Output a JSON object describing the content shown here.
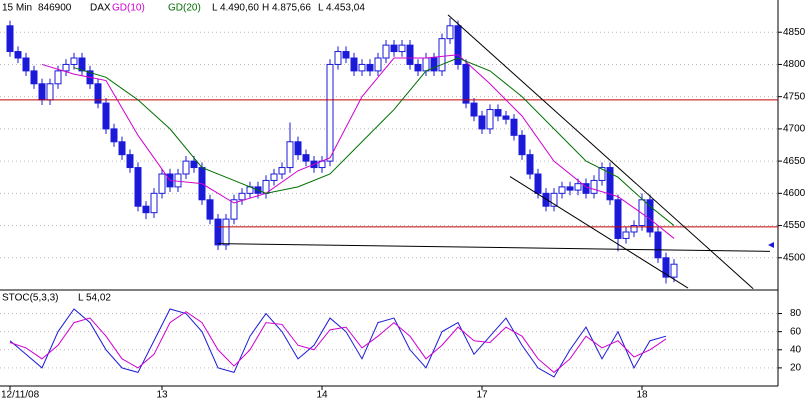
{
  "chart_data": [
    {
      "type": "candlestick",
      "title": "15 Min",
      "code": "846900",
      "symbol": "DAX",
      "stats": [
        "L 4.490,60",
        "H 4.875,66",
        "L 4.453,04"
      ],
      "categories": [
        "12/11/08",
        null,
        null,
        null,
        null,
        null,
        null,
        null,
        null,
        null,
        null,
        null,
        null,
        null,
        null,
        null,
        null,
        null,
        null,
        "13",
        null,
        null,
        null,
        null,
        null,
        null,
        null,
        null,
        null,
        null,
        null,
        null,
        null,
        null,
        null,
        null,
        null,
        null,
        null,
        "14",
        null,
        null,
        null,
        null,
        null,
        null,
        null,
        null,
        null,
        null,
        null,
        null,
        null,
        null,
        null,
        null,
        null,
        null,
        null,
        "17",
        null,
        null,
        null,
        null,
        null,
        null,
        null,
        null,
        null,
        null,
        null,
        null,
        null,
        null,
        null,
        null,
        null,
        null,
        null,
        "18",
        null,
        null,
        null,
        null
      ],
      "open": [
        4860,
        4820,
        4810,
        4790,
        4770,
        4745,
        4770,
        4790,
        4800,
        4810,
        4790,
        4770,
        4740,
        4700,
        4680,
        4660,
        4640,
        4580,
        4570,
        4600,
        4630,
        4610,
        4630,
        4650,
        4640,
        4590,
        4560,
        4520,
        4560,
        4590,
        4600,
        4610,
        4600,
        4620,
        4630,
        4640,
        4680,
        4660,
        4650,
        4640,
        4650,
        4800,
        4820,
        4810,
        4790,
        4800,
        4790,
        4810,
        4830,
        4820,
        4830,
        4800,
        4790,
        4810,
        4790,
        4840,
        4860,
        4800,
        4740,
        4720,
        4700,
        4730,
        4720,
        4715,
        4690,
        4660,
        4630,
        4600,
        4580,
        4600,
        4610,
        4605,
        4615,
        4600,
        4620,
        4640,
        4590,
        4530,
        4540,
        4550,
        4590,
        4540,
        4500,
        4470
      ],
      "high": [
        4868,
        4828,
        4818,
        4798,
        4778,
        4778,
        4798,
        4808,
        4818,
        4818,
        4798,
        4778,
        4748,
        4708,
        4688,
        4668,
        4648,
        4588,
        4608,
        4638,
        4638,
        4638,
        4658,
        4658,
        4648,
        4598,
        4568,
        4568,
        4598,
        4608,
        4618,
        4618,
        4628,
        4638,
        4648,
        4710,
        4688,
        4668,
        4658,
        4658,
        4808,
        4828,
        4828,
        4818,
        4808,
        4808,
        4818,
        4838,
        4838,
        4838,
        4838,
        4808,
        4818,
        4818,
        4848,
        4872,
        4868,
        4808,
        4748,
        4728,
        4738,
        4738,
        4728,
        4723,
        4698,
        4668,
        4638,
        4608,
        4608,
        4618,
        4618,
        4623,
        4623,
        4628,
        4648,
        4648,
        4598,
        4548,
        4558,
        4600,
        4598,
        4548,
        4508,
        4498
      ],
      "low": [
        4812,
        4802,
        4782,
        4762,
        4737,
        4737,
        4762,
        4782,
        4792,
        4782,
        4762,
        4732,
        4692,
        4672,
        4652,
        4632,
        4572,
        4560,
        4562,
        4592,
        4602,
        4602,
        4622,
        4632,
        4582,
        4552,
        4512,
        4512,
        4552,
        4582,
        4592,
        4592,
        4592,
        4612,
        4622,
        4632,
        4652,
        4642,
        4632,
        4632,
        4642,
        4792,
        4802,
        4782,
        4782,
        4782,
        4782,
        4802,
        4812,
        4812,
        4792,
        4782,
        4782,
        4782,
        4782,
        4832,
        4792,
        4732,
        4712,
        4692,
        4692,
        4712,
        4707,
        4682,
        4652,
        4622,
        4592,
        4572,
        4572,
        4592,
        4597,
        4597,
        4592,
        4592,
        4612,
        4582,
        4510,
        4522,
        4532,
        4542,
        4532,
        4492,
        4460,
        4462
      ],
      "close": [
        4820,
        4810,
        4790,
        4770,
        4745,
        4770,
        4790,
        4800,
        4810,
        4790,
        4770,
        4740,
        4700,
        4680,
        4660,
        4640,
        4580,
        4570,
        4600,
        4630,
        4610,
        4630,
        4650,
        4640,
        4590,
        4560,
        4520,
        4560,
        4590,
        4600,
        4610,
        4600,
        4620,
        4630,
        4640,
        4680,
        4660,
        4650,
        4640,
        4650,
        4800,
        4820,
        4810,
        4790,
        4800,
        4790,
        4810,
        4830,
        4820,
        4830,
        4800,
        4790,
        4810,
        4790,
        4840,
        4860,
        4800,
        4740,
        4720,
        4700,
        4730,
        4720,
        4715,
        4690,
        4660,
        4630,
        4600,
        4580,
        4600,
        4610,
        4605,
        4615,
        4600,
        4620,
        4640,
        4590,
        4530,
        4540,
        4550,
        4590,
        4540,
        4500,
        4470,
        4490
      ],
      "up_color": "#ffffff",
      "down_color": "#1a1ad8",
      "edge_color": "#1a1ad8",
      "series": [
        {
          "name": "GD(10)",
          "color": "#d000d0",
          "x": [
            4,
            8,
            12,
            16,
            20,
            24,
            28,
            32,
            36,
            40,
            44,
            48,
            52,
            56,
            60,
            64,
            68,
            72,
            76,
            80,
            83
          ],
          "values": [
            4800,
            4785,
            4775,
            4690,
            4620,
            4615,
            4585,
            4600,
            4635,
            4655,
            4750,
            4810,
            4810,
            4815,
            4770,
            4720,
            4650,
            4610,
            4595,
            4560,
            4530
          ]
        },
        {
          "name": "GD(20)",
          "color": "#007000",
          "x": [
            8,
            12,
            16,
            20,
            24,
            28,
            32,
            36,
            40,
            44,
            48,
            52,
            56,
            60,
            64,
            68,
            72,
            76,
            80,
            83
          ],
          "values": [
            4795,
            4780,
            4745,
            4700,
            4640,
            4620,
            4600,
            4610,
            4630,
            4680,
            4730,
            4790,
            4810,
            4790,
            4750,
            4700,
            4650,
            4625,
            4580,
            4550
          ]
        }
      ],
      "hlines": [
        4745,
        4548
      ],
      "hline_color": "#c00000",
      "trendlines": [
        {
          "x": [
            26,
            95
          ],
          "y": [
            4522,
            4510
          ]
        },
        {
          "x": [
            54.75,
            92.9
          ],
          "y": [
            4877,
            4452
          ]
        },
        {
          "x": [
            62.5,
            84.75
          ],
          "y": [
            4626,
            4453
          ]
        }
      ],
      "ylim": [
        4450,
        4900
      ],
      "yticks": [
        4500,
        4550,
        4600,
        4650,
        4700,
        4750,
        4800,
        4850
      ],
      "grid": true
    },
    {
      "type": "line",
      "title": "STOC(5,3,3)",
      "stats": [
        "L 54,02"
      ],
      "series": [
        {
          "color": "#1a1ad8",
          "x": [
            0,
            2,
            4,
            6,
            8,
            10,
            12,
            14,
            16,
            18,
            20,
            22,
            24,
            26,
            28,
            30,
            32,
            34,
            36,
            38,
            40,
            42,
            44,
            46,
            48,
            50,
            52,
            54,
            56,
            58,
            60,
            62,
            64,
            66,
            68,
            70,
            72,
            74,
            76,
            78,
            80,
            82
          ],
          "values": [
            50,
            35,
            20,
            60,
            85,
            70,
            40,
            20,
            15,
            50,
            85,
            80,
            60,
            20,
            15,
            55,
            80,
            60,
            30,
            45,
            75,
            60,
            30,
            70,
            75,
            40,
            20,
            60,
            70,
            35,
            55,
            75,
            45,
            20,
            10,
            40,
            65,
            30,
            60,
            20,
            50,
            55
          ]
        },
        {
          "color": "#d000d0",
          "x": [
            0,
            2,
            4,
            6,
            8,
            10,
            12,
            14,
            16,
            18,
            20,
            22,
            24,
            26,
            28,
            30,
            32,
            34,
            36,
            38,
            40,
            42,
            44,
            46,
            48,
            50,
            52,
            54,
            56,
            58,
            60,
            62,
            64,
            66,
            68,
            70,
            72,
            74,
            76,
            78,
            80,
            82
          ],
          "values": [
            48,
            42,
            30,
            45,
            70,
            75,
            55,
            30,
            20,
            35,
            70,
            82,
            70,
            40,
            22,
            40,
            70,
            68,
            45,
            40,
            62,
            65,
            42,
            55,
            70,
            55,
            30,
            45,
            65,
            50,
            48,
            65,
            55,
            30,
            15,
            30,
            55,
            42,
            50,
            32,
            40,
            52
          ]
        }
      ],
      "ylim": [
        0,
        106
      ],
      "yticks": [
        20,
        40,
        60,
        80
      ],
      "grid": true
    }
  ]
}
